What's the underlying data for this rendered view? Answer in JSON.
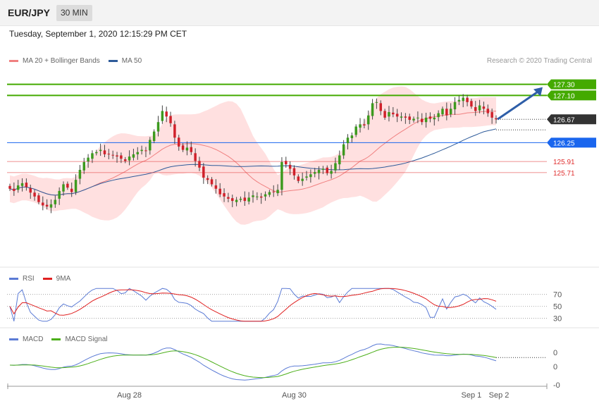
{
  "header": {
    "symbol": "EUR/JPY",
    "interval": "30 MIN",
    "datetime": "Tuesday, September 1, 2020 12:15:29 PM CET"
  },
  "legend_main": [
    {
      "label": "MA 20 + Bollinger Bands",
      "color": "#f08080"
    },
    {
      "label": "MA 50",
      "color": "#2e5b9a"
    }
  ],
  "credit": "Research © 2020 Trading Central",
  "legend_rsi": [
    {
      "label": "RSI",
      "color": "#5b7bd5"
    },
    {
      "label": "9MA",
      "color": "#e02020"
    }
  ],
  "legend_macd": [
    {
      "label": "MACD",
      "color": "#5b7bd5"
    },
    {
      "label": "MACD Signal",
      "color": "#4caf1a"
    }
  ],
  "chart_data": [
    {
      "type": "candlestick",
      "ylim": [
        124.3,
        127.6
      ],
      "x_ticks": [
        "Aug 28",
        "Aug 30",
        "Sep 1",
        "Sep 2"
      ],
      "levels": [
        {
          "value": 127.3,
          "label": "127.30",
          "color": "#44aa00",
          "style": "resistance"
        },
        {
          "value": 127.1,
          "label": "127.10",
          "color": "#44aa00",
          "style": "resistance"
        },
        {
          "value": 126.67,
          "label": "126.67",
          "color": "#333333",
          "style": "last"
        },
        {
          "value": 126.25,
          "label": "126.25",
          "color": "#1a66ee",
          "style": "pivot"
        },
        {
          "value": 125.91,
          "label": "125.91",
          "color": "#e03030",
          "style": "support"
        },
        {
          "value": 125.71,
          "label": "125.71",
          "color": "#e03030",
          "style": "support"
        }
      ],
      "close": [
        125.42,
        125.38,
        125.48,
        125.52,
        125.45,
        125.35,
        125.28,
        125.18,
        125.12,
        125.1,
        125.14,
        125.22,
        125.38,
        125.5,
        125.44,
        125.36,
        125.58,
        125.76,
        125.9,
        125.98,
        126.06,
        126.08,
        126.12,
        126.04,
        126.05,
        126.02,
        126.0,
        125.96,
        125.92,
        126.0,
        126.04,
        126.08,
        126.12,
        126.1,
        126.3,
        126.45,
        126.62,
        126.82,
        126.72,
        126.6,
        126.34,
        126.18,
        126.12,
        126.16,
        126.08,
        125.92,
        125.8,
        125.62,
        125.58,
        125.5,
        125.42,
        125.32,
        125.28,
        125.24,
        125.2,
        125.22,
        125.24,
        125.2,
        125.26,
        125.3,
        125.28,
        125.26,
        125.32,
        125.36,
        125.36,
        125.4,
        125.9,
        125.86,
        125.78,
        125.66,
        125.56,
        125.6,
        125.64,
        125.68,
        125.72,
        125.76,
        125.78,
        125.7,
        125.74,
        125.88,
        126.02,
        126.22,
        126.34,
        126.38,
        126.54,
        126.58,
        126.56,
        126.74,
        126.96,
        126.98,
        126.82,
        126.7,
        126.8,
        126.76,
        126.72,
        126.72,
        126.7,
        126.66,
        126.68,
        126.7,
        126.62,
        126.7,
        126.68,
        126.7,
        126.78,
        126.86,
        126.74,
        126.86,
        126.98,
        127.02,
        127.06,
        126.98,
        126.9,
        126.82,
        126.92,
        126.86,
        126.78,
        126.7,
        126.67
      ]
    },
    {
      "type": "line",
      "name": "RSI",
      "ylim": [
        20,
        85
      ],
      "y_ticks": [
        70,
        50,
        30
      ]
    },
    {
      "type": "line",
      "name": "MACD",
      "y_ticks": [
        "0",
        "0",
        "-0"
      ]
    }
  ]
}
